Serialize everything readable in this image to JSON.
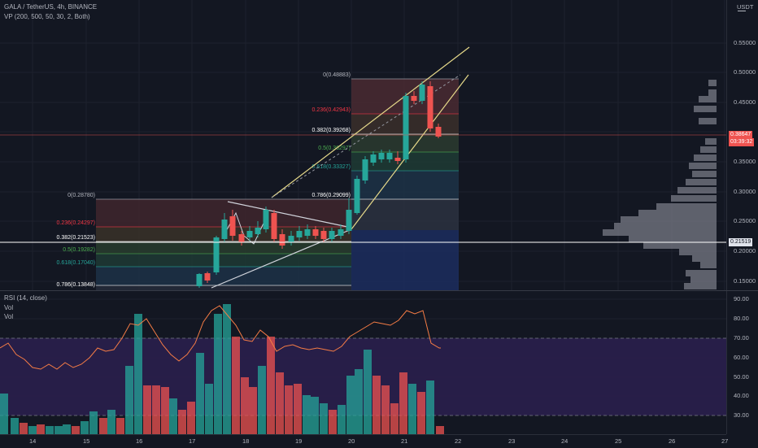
{
  "symbol_title": "GALA / TetherUS, 4h, BINANCE",
  "vp_label": "VP (200, 500, 50, 30, 2, Both)",
  "rsi_label": "RSI (14, close)",
  "vol_label_1": "Vol",
  "vol_label_2": "Vol",
  "currency": "USDT",
  "price_axis": [
    "0.55000",
    "0.50000",
    "0.45000",
    "0.40000",
    "0.35000",
    "0.30000",
    "0.25000",
    "0.20000",
    "0.15000"
  ],
  "rsi_axis": [
    "90.00",
    "80.00",
    "70.00",
    "60.00",
    "50.00",
    "40.00",
    "30.00"
  ],
  "time_axis": [
    "14",
    "15",
    "16",
    "17",
    "18",
    "19",
    "20",
    "21",
    "22",
    "23",
    "24",
    "25",
    "26",
    "27"
  ],
  "last_price": "0.38647",
  "countdown": "03:39:32",
  "crosshair_price": "0.21519",
  "fib_big": [
    {
      "label": "0(0.48883)",
      "color": "#b2b5be"
    },
    {
      "label": "0.236(0.42943)",
      "color": "#f23645"
    },
    {
      "label": "0.382(0.39268)",
      "color": "#ffffff"
    },
    {
      "label": "0.5(0.36297)",
      "color": "#4caf50"
    },
    {
      "label": "0.618(0.33327)",
      "color": "#26a69a"
    },
    {
      "label": "0.786(0.29099)",
      "color": "#ffffff"
    }
  ],
  "fib_small": [
    {
      "label": "0(0.28780)",
      "color": "#b2b5be"
    },
    {
      "label": "0.236(0.24297)",
      "color": "#f23645"
    },
    {
      "label": "0.382(0.21523)",
      "color": "#ffffff"
    },
    {
      "label": "0.5(0.19282)",
      "color": "#4caf50"
    },
    {
      "label": "0.618(0.17040)",
      "color": "#26a69a"
    },
    {
      "label": "0.786(0.13848)",
      "color": "#ffffff"
    }
  ],
  "colors": {
    "up": "#26a69a",
    "down": "#ef5350",
    "rsi_line": "#f57c45",
    "rsi_band": "#2a1f4d",
    "vp": "#787b86"
  }
}
